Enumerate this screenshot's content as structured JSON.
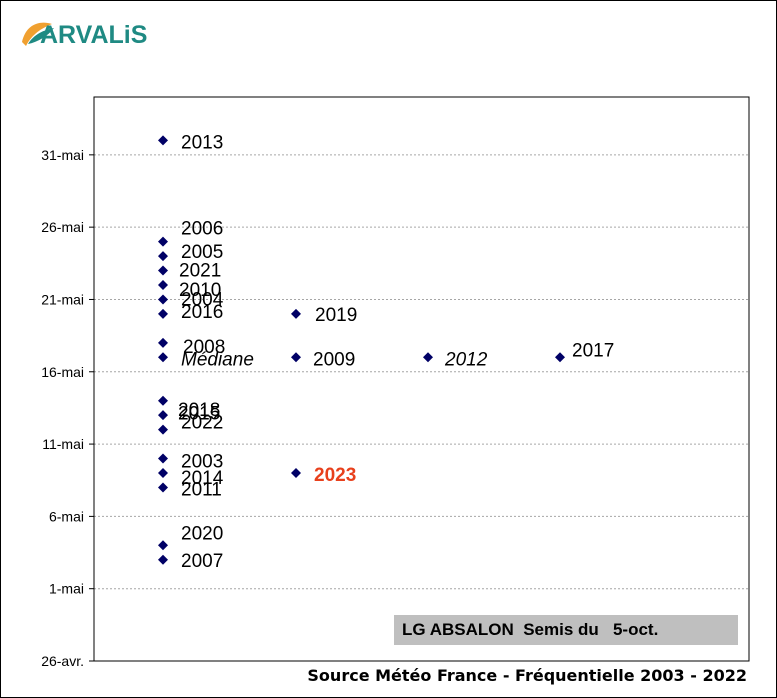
{
  "logo": {
    "text": "ARVALiS",
    "accent_color": "#f0a030",
    "brand_color": "#1f8a83"
  },
  "variety_label": "LG ABSALON  Semis du   5-oct.",
  "source_label": "Source Météo France - Fréquentielle  2003 - 2022",
  "chart_data": {
    "type": "scatter",
    "title": "",
    "xlabel": "",
    "ylabel": "",
    "y_tick_labels": [
      "26-avr.",
      "1-mai",
      "6-mai",
      "11-mai",
      "16-mai",
      "21-mai",
      "26-mai",
      "31-mai"
    ],
    "ylim": [
      "26-avr.",
      "4-juin"
    ],
    "grid": "horizontal dashed",
    "marker_color": "#000066",
    "highlight_color": "#e8401c",
    "points": [
      {
        "x": 1,
        "y": "1-juin",
        "label": "2013"
      },
      {
        "x": 1,
        "y": "25-mai",
        "label": "2006"
      },
      {
        "x": 1,
        "y": "24-mai",
        "label": "2005"
      },
      {
        "x": 1,
        "y": "23-mai",
        "label": "2021"
      },
      {
        "x": 1,
        "y": "22-mai",
        "label": "2010"
      },
      {
        "x": 1,
        "y": "21-mai",
        "label": "2004"
      },
      {
        "x": 1,
        "y": "20-mai",
        "label": "2016"
      },
      {
        "x": 1,
        "y": "18-mai",
        "label": "2008"
      },
      {
        "x": 1,
        "y": "17-mai",
        "label": "Médiane",
        "style": "italic"
      },
      {
        "x": 1,
        "y": "14-mai",
        "label": "2015"
      },
      {
        "x": 1,
        "y": "13-mai",
        "label": "2018"
      },
      {
        "x": 1,
        "y": "12-mai",
        "label": "2022"
      },
      {
        "x": 1,
        "y": "10-mai",
        "label": "2003"
      },
      {
        "x": 1,
        "y": "9-mai",
        "label": "2014"
      },
      {
        "x": 1,
        "y": "8-mai",
        "label": "2011"
      },
      {
        "x": 1,
        "y": "4-mai",
        "label": "2020"
      },
      {
        "x": 1,
        "y": "3-mai",
        "label": "2007"
      },
      {
        "x": 2,
        "y": "20-mai",
        "label": "2019"
      },
      {
        "x": 2,
        "y": "17-mai",
        "label": "2009"
      },
      {
        "x": 2,
        "y": "9-mai",
        "label": "2023",
        "style": "highlight"
      },
      {
        "x": 3,
        "y": "17-mai",
        "label": "2012",
        "style": "italic"
      },
      {
        "x": 4,
        "y": "17-mai",
        "label": "2017"
      }
    ]
  }
}
